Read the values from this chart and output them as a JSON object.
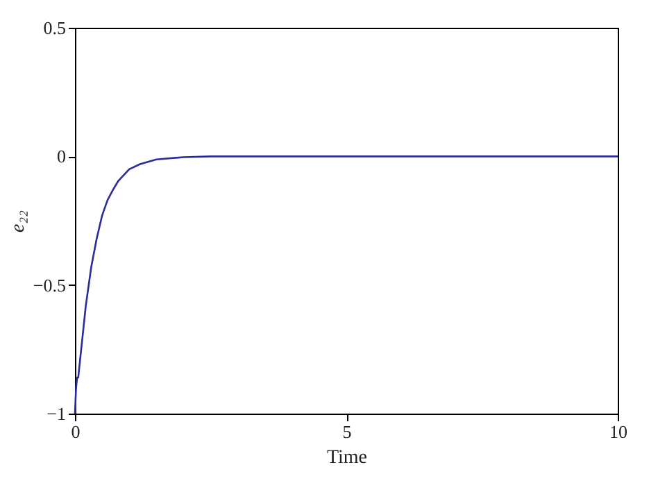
{
  "chart_data": {
    "type": "line",
    "xlabel": "Time",
    "ylabel": "e₂₂",
    "x": [
      0,
      0.02,
      0.04,
      0.06,
      0.1,
      0.15,
      0.2,
      0.3,
      0.4,
      0.5,
      0.6,
      0.7,
      0.8,
      1.0,
      1.2,
      1.5,
      2.0,
      2.5,
      5,
      10
    ],
    "series": [
      {
        "color": "#2b2b9c",
        "values": [
          -1,
          -0.9,
          -0.86,
          -0.86,
          -0.78,
          -0.68,
          -0.58,
          -0.43,
          -0.32,
          -0.23,
          -0.17,
          -0.13,
          -0.095,
          -0.05,
          -0.03,
          -0.012,
          -0.003,
          0,
          0,
          0
        ]
      }
    ],
    "xlim": [
      0,
      10
    ],
    "xticks": [
      0,
      5,
      10
    ],
    "ylim": [
      -1,
      0.5
    ],
    "yticks": [
      {
        "value": -1,
        "label": "−1"
      },
      {
        "value": -0.5,
        "label": "−0.5"
      },
      0,
      0.5
    ],
    "grid": false,
    "legend": false,
    "marker": "none",
    "line_style": "solid"
  }
}
